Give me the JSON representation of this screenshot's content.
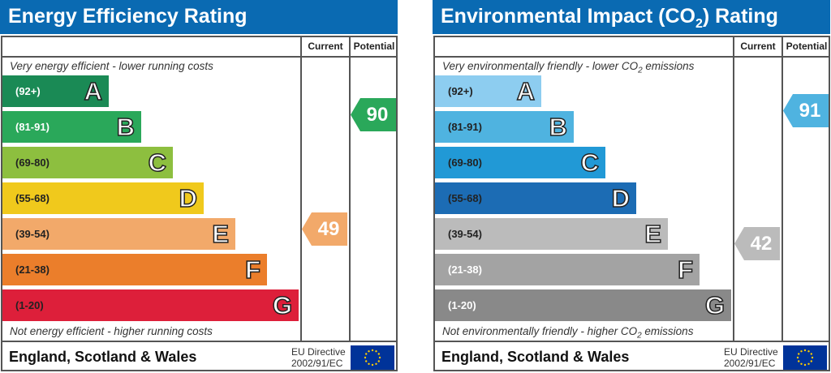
{
  "panels": [
    {
      "title": "Energy Efficiency Rating",
      "title_sub": "",
      "header": {
        "current": "Current",
        "potential": "Potential"
      },
      "top_note": "Very energy efficient - lower running costs",
      "top_note_sub": "",
      "top_note_after": "",
      "bottom_note": "Not energy efficient - higher running costs",
      "bottom_note_sub": "",
      "bottom_note_after": "",
      "bands": [
        {
          "range": "(92+)",
          "letter": "A",
          "color": "#1a8a55",
          "text": "#fff"
        },
        {
          "range": "(81-91)",
          "letter": "B",
          "color": "#2aa85a",
          "text": "#fff"
        },
        {
          "range": "(69-80)",
          "letter": "C",
          "color": "#8dbf3f",
          "text": "#222"
        },
        {
          "range": "(55-68)",
          "letter": "D",
          "color": "#f0c91c",
          "text": "#222"
        },
        {
          "range": "(39-54)",
          "letter": "E",
          "color": "#f2a96a",
          "text": "#222"
        },
        {
          "range": "(21-38)",
          "letter": "F",
          "color": "#eb7e2b",
          "text": "#222"
        },
        {
          "range": "(1-20)",
          "letter": "G",
          "color": "#dd1f3a",
          "text": "#222"
        }
      ],
      "current": {
        "value": "49",
        "band": "E",
        "color": "#f2a96a"
      },
      "potential": {
        "value": "90",
        "band": "B",
        "color": "#2aa85a"
      },
      "footer": "England, Scotland & Wales",
      "directive_line1": "EU Directive",
      "directive_line2": "2002/91/EC"
    },
    {
      "title": "Environmental Impact (CO",
      "title_sub": "2",
      "title_after": ") Rating",
      "header": {
        "current": "Current",
        "potential": "Potential"
      },
      "top_note": "Very environmentally friendly - lower CO",
      "top_note_sub": "2",
      "top_note_after": " emissions",
      "bottom_note": "Not environmentally friendly - higher CO",
      "bottom_note_sub": "2",
      "bottom_note_after": " emissions",
      "bands": [
        {
          "range": "(92+)",
          "letter": "A",
          "color": "#8dcdf0",
          "text": "#222"
        },
        {
          "range": "(81-91)",
          "letter": "B",
          "color": "#4fb3e0",
          "text": "#222"
        },
        {
          "range": "(69-80)",
          "letter": "C",
          "color": "#2199d6",
          "text": "#222"
        },
        {
          "range": "(55-68)",
          "letter": "D",
          "color": "#1c6cb4",
          "text": "#222"
        },
        {
          "range": "(39-54)",
          "letter": "E",
          "color": "#bbbbbb",
          "text": "#222"
        },
        {
          "range": "(21-38)",
          "letter": "F",
          "color": "#a3a3a3",
          "text": "#fff"
        },
        {
          "range": "(1-20)",
          "letter": "G",
          "color": "#898989",
          "text": "#fff"
        }
      ],
      "current": {
        "value": "42",
        "band": "E",
        "color": "#bbbbbb"
      },
      "potential": {
        "value": "91",
        "band": "B",
        "color": "#4fb3e0"
      },
      "footer": "England, Scotland & Wales",
      "directive_line1": "EU Directive",
      "directive_line2": "2002/91/EC"
    }
  ]
}
